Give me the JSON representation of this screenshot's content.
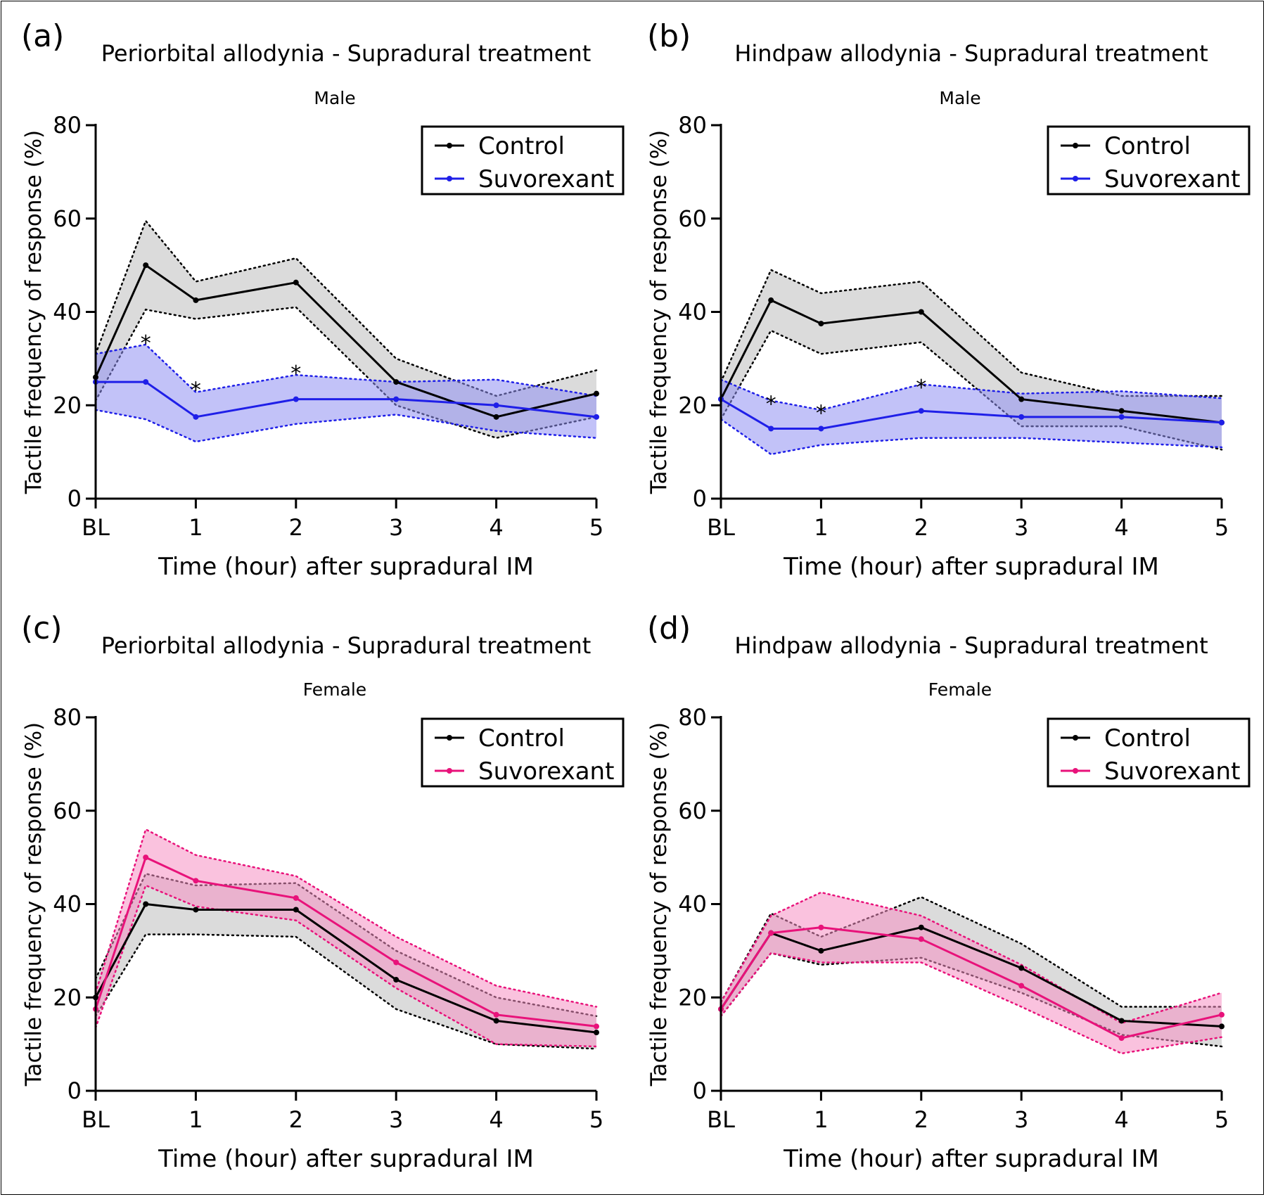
{
  "colors": {
    "control": "#000000",
    "control_band": "#bdbdbd",
    "male_treat": "#1f1fe8",
    "male_treat_band": "#8f8ff2",
    "female_treat": "#e8127a",
    "female_treat_band": "#f58fc2"
  },
  "chart_data": [
    {
      "panel": "(a)",
      "type": "line",
      "title": "Periorbital allodynia - Supradural treatment",
      "subtitle": "Male",
      "xlabel": "Time (hour) after supradural IM",
      "ylabel": "Tactile frequency of response (%)",
      "ylim": [
        0,
        80
      ],
      "yticks": [
        "0",
        "20",
        "40",
        "60",
        "80"
      ],
      "x": [
        0,
        0.5,
        1,
        2,
        3,
        4,
        5
      ],
      "xtick_labels": [
        "BL",
        "1",
        "2",
        "3",
        "4",
        "5"
      ],
      "xtick_values": [
        0,
        1,
        2,
        3,
        4,
        5
      ],
      "legend": [
        "Control",
        "Suvorexant"
      ],
      "legend_position": "top-right",
      "series": [
        {
          "name": "Control",
          "color_key": "control",
          "band_key": "control_band",
          "values": [
            26,
            50,
            42.5,
            46.3,
            25,
            17.5,
            22.5
          ],
          "upper": [
            31,
            59.5,
            46.5,
            51.5,
            30,
            22,
            27.5
          ],
          "lower": [
            21,
            40.5,
            38.5,
            41,
            20,
            13,
            17.5
          ]
        },
        {
          "name": "Suvorexant",
          "color_key": "male_treat",
          "band_key": "male_treat_band",
          "values": [
            25,
            25,
            17.5,
            21.3,
            21.3,
            20,
            17.5
          ],
          "upper": [
            31,
            33,
            22.8,
            26.5,
            25,
            25.5,
            22
          ],
          "lower": [
            19,
            17,
            12.2,
            16,
            18,
            14.5,
            13
          ]
        }
      ],
      "significance": [
        {
          "label": "*",
          "x": 0.5,
          "y": 34.5
        },
        {
          "label": "*",
          "x": 1,
          "y": 24.5
        },
        {
          "label": "*",
          "x": 2,
          "y": 28
        }
      ]
    },
    {
      "panel": "(b)",
      "type": "line",
      "title": "Hindpaw allodynia - Supradural treatment",
      "subtitle": "Male",
      "xlabel": "Time (hour) after supradural IM",
      "ylabel": "Tactile frequency of response (%)",
      "ylim": [
        0,
        80
      ],
      "yticks": [
        "0",
        "20",
        "40",
        "60",
        "80"
      ],
      "x": [
        0,
        0.5,
        1,
        2,
        3,
        4,
        5
      ],
      "xtick_labels": [
        "BL",
        "1",
        "2",
        "3",
        "4",
        "5"
      ],
      "xtick_values": [
        0,
        1,
        2,
        3,
        4,
        5
      ],
      "legend": [
        "Control",
        "Suvorexant"
      ],
      "legend_position": "top-right",
      "series": [
        {
          "name": "Control",
          "color_key": "control",
          "band_key": "control_band",
          "values": [
            21.3,
            42.5,
            37.5,
            40,
            21.3,
            18.8,
            16.3
          ],
          "upper": [
            25,
            49,
            44,
            46.5,
            27,
            22,
            22
          ],
          "lower": [
            17,
            36,
            31,
            33.5,
            15.5,
            15.5,
            10.5
          ]
        },
        {
          "name": "Suvorexant",
          "color_key": "male_treat",
          "band_key": "male_treat_band",
          "values": [
            21.3,
            15,
            15,
            18.8,
            17.5,
            17.5,
            16.3
          ],
          "upper": [
            25.5,
            21,
            19,
            24.5,
            22.5,
            23,
            21.5
          ],
          "lower": [
            17,
            9.5,
            11.5,
            13,
            13,
            12,
            11
          ]
        }
      ],
      "significance": [
        {
          "label": "*",
          "x": 0.5,
          "y": 21.5
        },
        {
          "label": "*",
          "x": 1,
          "y": 19.5
        },
        {
          "label": "*",
          "x": 2,
          "y": 25
        }
      ]
    },
    {
      "panel": "(c)",
      "type": "line",
      "title": "Periorbital allodynia - Supradural treatment",
      "subtitle": "Female",
      "xlabel": "Time (hour) after supradural IM",
      "ylabel": "Tactile frequency of response (%)",
      "ylim": [
        0,
        80
      ],
      "yticks": [
        "0",
        "20",
        "40",
        "60",
        "80"
      ],
      "x": [
        0,
        0.5,
        1,
        2,
        3,
        4,
        5
      ],
      "xtick_labels": [
        "BL",
        "1",
        "2",
        "3",
        "4",
        "5"
      ],
      "xtick_values": [
        0,
        1,
        2,
        3,
        4,
        5
      ],
      "legend": [
        "Control",
        "Suvorexant"
      ],
      "legend_position": "top-right",
      "series": [
        {
          "name": "Control",
          "color_key": "control",
          "band_key": "control_band",
          "values": [
            20,
            40,
            38.8,
            38.8,
            23.8,
            15,
            12.5
          ],
          "upper": [
            24,
            46.5,
            44,
            44.5,
            30,
            20,
            16
          ],
          "lower": [
            16,
            33.5,
            33.5,
            33,
            17.5,
            10,
            9
          ]
        },
        {
          "name": "Suvorexant",
          "color_key": "female_treat",
          "band_key": "female_treat_band",
          "values": [
            17.5,
            50,
            45,
            41.3,
            27.5,
            16.3,
            13.8
          ],
          "upper": [
            21,
            56,
            50.5,
            46,
            33,
            22.5,
            18
          ],
          "lower": [
            13.5,
            44,
            39.5,
            36.5,
            22,
            10,
            9.5
          ]
        }
      ],
      "significance": []
    },
    {
      "panel": "(d)",
      "type": "line",
      "title": "Hindpaw allodynia - Supradural treatment",
      "subtitle": "Female",
      "xlabel": "Time (hour) after supradural IM",
      "ylabel": "Tactile frequency of response (%)",
      "ylim": [
        0,
        80
      ],
      "yticks": [
        "0",
        "20",
        "40",
        "60",
        "80"
      ],
      "x": [
        0,
        0.5,
        1,
        2,
        3,
        4,
        5
      ],
      "xtick_labels": [
        "BL",
        "1",
        "2",
        "3",
        "4",
        "5"
      ],
      "xtick_values": [
        0,
        1,
        2,
        3,
        4,
        5
      ],
      "legend": [
        "Control",
        "Suvorexant"
      ],
      "legend_position": "top-right",
      "series": [
        {
          "name": "Control",
          "color_key": "control",
          "band_key": "control_band",
          "values": [
            17.5,
            33.8,
            30,
            35,
            26.3,
            15,
            13.8
          ],
          "upper": [
            19,
            38,
            33,
            41.5,
            31.5,
            18,
            18
          ],
          "lower": [
            16,
            29.5,
            27,
            28.5,
            21,
            12,
            9.5
          ]
        },
        {
          "name": "Suvorexant",
          "color_key": "female_treat",
          "band_key": "female_treat_band",
          "values": [
            17.5,
            33.8,
            35,
            32.5,
            22.5,
            11.3,
            16.3
          ],
          "upper": [
            19,
            37.5,
            42.5,
            37.5,
            27,
            14.5,
            21
          ],
          "lower": [
            16,
            29.5,
            27.5,
            27.5,
            18,
            8,
            11.5
          ]
        }
      ],
      "significance": []
    }
  ]
}
